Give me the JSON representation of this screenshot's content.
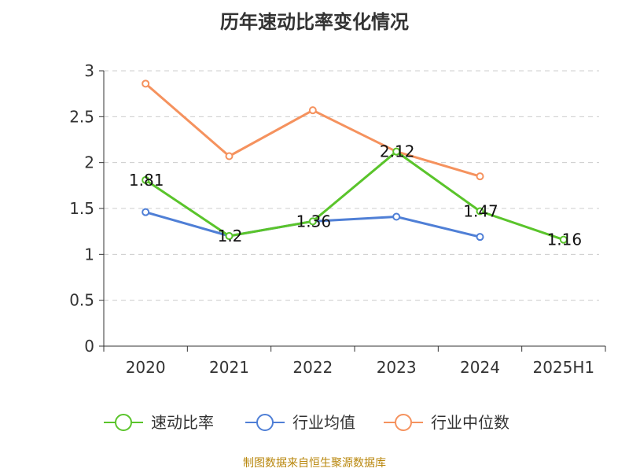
{
  "source_note": "制图数据来自恒生聚源数据库",
  "chart_data": {
    "type": "line",
    "title": "历年速动比率变化情况",
    "categories": [
      "2020",
      "2021",
      "2022",
      "2023",
      "2024",
      "2025H1"
    ],
    "ylim": [
      0,
      3
    ],
    "yticks": [
      "0",
      "0.5",
      "1",
      "1.5",
      "2",
      "2.5",
      "3"
    ],
    "grid": true,
    "legend_position": "bottom",
    "series": [
      {
        "name": "速动比率",
        "color": "#5ac42b",
        "values": [
          1.81,
          1.2,
          1.36,
          2.12,
          1.47,
          1.16
        ],
        "labels": [
          "1.81",
          "1.2",
          "1.36",
          "2.12",
          "1.47",
          "1.16"
        ]
      },
      {
        "name": "行业均值",
        "color": "#4f7fd6",
        "values": [
          1.46,
          1.2,
          1.36,
          1.41,
          1.19,
          null
        ]
      },
      {
        "name": "行业中位数",
        "color": "#f5925e",
        "values": [
          2.86,
          2.07,
          2.57,
          2.12,
          1.85,
          null
        ]
      }
    ]
  }
}
